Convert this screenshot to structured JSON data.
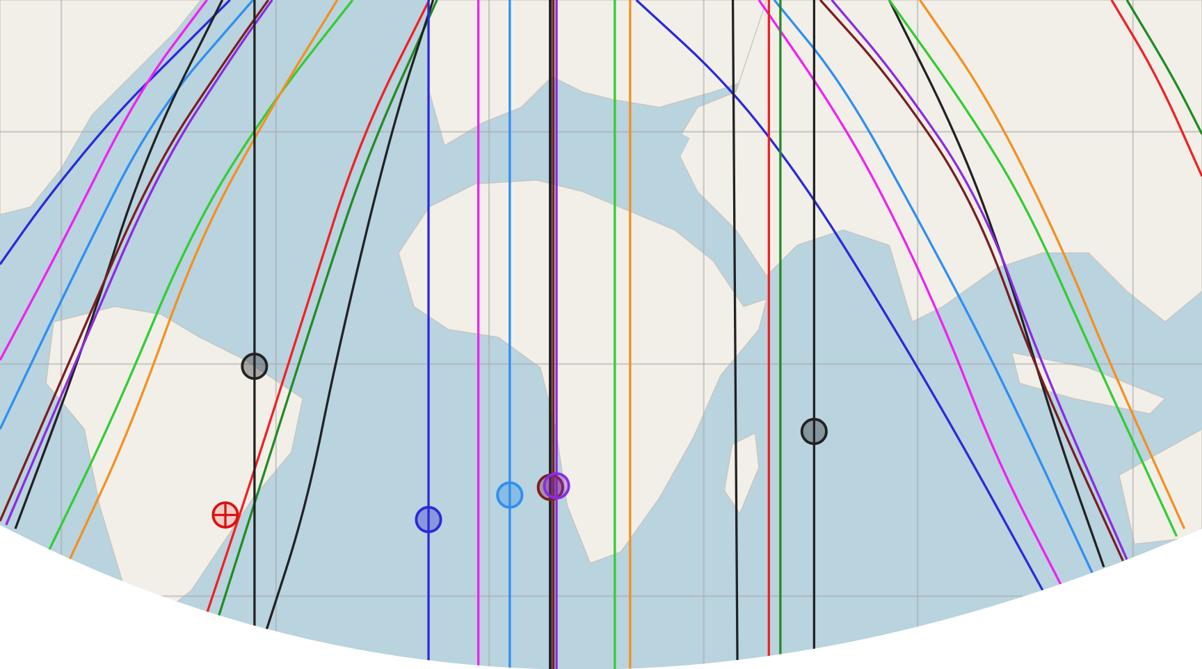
{
  "map": {
    "colors": {
      "ocean": "#b9d3df",
      "land": "#f2efe9",
      "border": "#c9c4bd",
      "grid": "#a9a9a9",
      "outside": "#ffffff"
    },
    "vertical_lines": [
      {
        "id": "v-black-1",
        "color": "#222222"
      },
      {
        "id": "v-blue",
        "color": "#2a2ad8"
      },
      {
        "id": "v-magenta",
        "color": "#ee22ee"
      },
      {
        "id": "v-dodgerblue",
        "color": "#2f8ff0"
      },
      {
        "id": "v-black-2",
        "color": "#222222"
      },
      {
        "id": "v-brown",
        "color": "#7a1f1f"
      },
      {
        "id": "v-purple",
        "color": "#8a2be2"
      },
      {
        "id": "v-green",
        "color": "#33cc33"
      },
      {
        "id": "v-orange",
        "color": "#f39020"
      },
      {
        "id": "v-black-3",
        "color": "#222222"
      },
      {
        "id": "v-red",
        "color": "#ee2222"
      },
      {
        "id": "v-darkgreen",
        "color": "#228b22"
      },
      {
        "id": "v-black-4",
        "color": "#222222"
      }
    ],
    "curves": [
      {
        "id": "c-blue",
        "color": "#2a2ad8"
      },
      {
        "id": "c-magenta",
        "color": "#ee22ee"
      },
      {
        "id": "c-dodgerblue",
        "color": "#2f8ff0"
      },
      {
        "id": "c-black",
        "color": "#222222"
      },
      {
        "id": "c-brown",
        "color": "#7a1f1f"
      },
      {
        "id": "c-purple",
        "color": "#8a2be2"
      },
      {
        "id": "c-green",
        "color": "#33cc33"
      },
      {
        "id": "c-orange",
        "color": "#f39020"
      },
      {
        "id": "c-red",
        "color": "#ee2222"
      },
      {
        "id": "c-darkgreen",
        "color": "#228b22"
      },
      {
        "id": "c-black-2",
        "color": "#222222"
      }
    ],
    "markers": [
      {
        "id": "m-black-1",
        "color": "#222222",
        "type": "circle"
      },
      {
        "id": "m-black-2",
        "color": "#222222",
        "type": "circle"
      },
      {
        "id": "m-blue",
        "color": "#2a2ad8",
        "type": "circle"
      },
      {
        "id": "m-dodgerblue",
        "color": "#2f8ff0",
        "type": "circle"
      },
      {
        "id": "m-brown",
        "color": "#7a1f1f",
        "type": "circle"
      },
      {
        "id": "m-purple",
        "color": "#8a2be2",
        "type": "circle"
      },
      {
        "id": "m-red",
        "color": "#dd1111",
        "type": "crosshair"
      }
    ]
  }
}
